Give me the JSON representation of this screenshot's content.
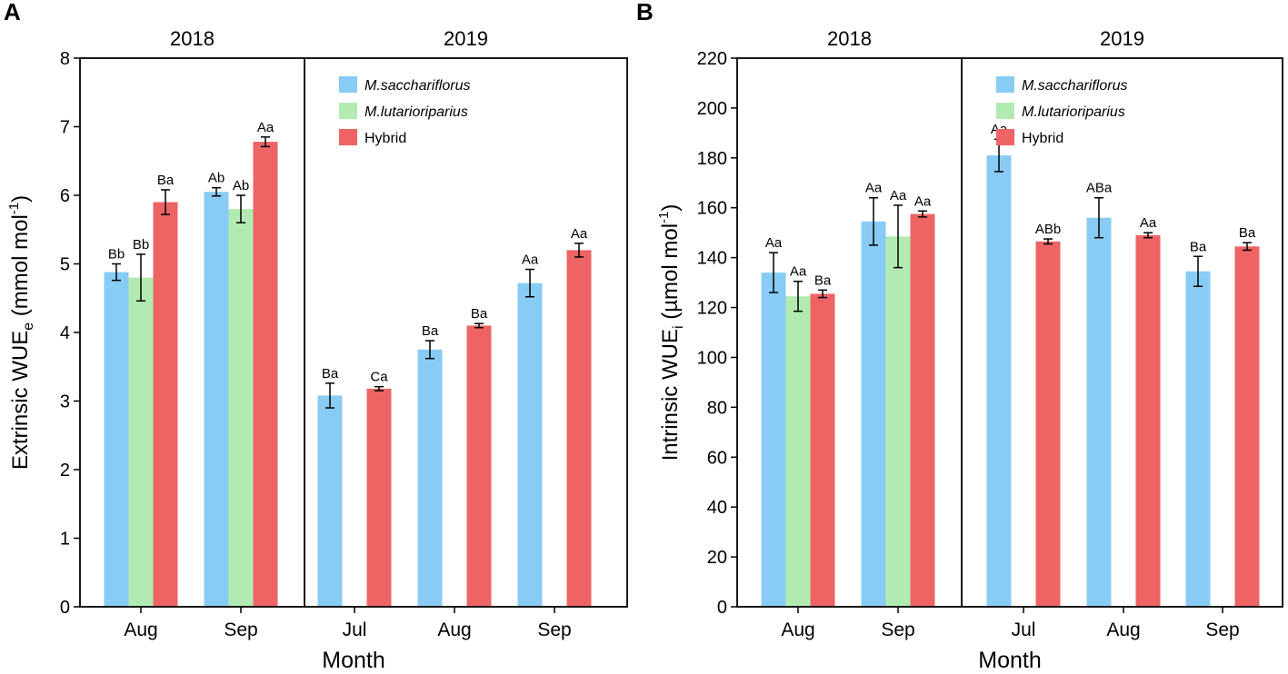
{
  "colors": {
    "M.sacchariflorus": "#88CCF5",
    "M.lutarioriparius": "#B2EBB2",
    "Hybrid": "#EE6464"
  },
  "chart_data": [
    {
      "type": "bar",
      "panel": "A",
      "title": "",
      "xlabel": "Month",
      "ylabel_main": "Extrinsic WUE",
      "ylabel_sub": "e",
      "ylabel_unit_open": " (mmol mol",
      "ylabel_unit_sup": "-1",
      "ylabel_unit_close": ")",
      "ylim": [
        0,
        8
      ],
      "yticks": [
        "0",
        "1",
        "2",
        "3",
        "4",
        "5",
        "6",
        "7",
        "8"
      ],
      "yticks_num": [
        0,
        1,
        2,
        3,
        4,
        5,
        6,
        7,
        8
      ],
      "legend_position": "top-right",
      "legend": [
        {
          "name": "M.sacchariflorus",
          "italic": true
        },
        {
          "name": "M.lutarioriparius",
          "italic": true
        },
        {
          "name": "Hybrid",
          "italic": false
        }
      ],
      "groups": [
        {
          "year": "2018",
          "categories": [
            {
              "label": "Aug",
              "bars": [
                {
                  "series": "M.sacchariflorus",
                  "value": 4.88,
                  "err": 0.12,
                  "label": "Bb"
                },
                {
                  "series": "M.lutarioriparius",
                  "value": 4.8,
                  "err": 0.34,
                  "label": "Bb"
                },
                {
                  "series": "Hybrid",
                  "value": 5.9,
                  "err": 0.18,
                  "label": "Ba"
                }
              ]
            },
            {
              "label": "Sep",
              "bars": [
                {
                  "series": "M.sacchariflorus",
                  "value": 6.05,
                  "err": 0.06,
                  "label": "Ab"
                },
                {
                  "series": "M.lutarioriparius",
                  "value": 5.8,
                  "err": 0.2,
                  "label": "Ab"
                },
                {
                  "series": "Hybrid",
                  "value": 6.78,
                  "err": 0.07,
                  "label": "Aa"
                }
              ]
            }
          ]
        },
        {
          "year": "2019",
          "categories": [
            {
              "label": "Jul",
              "bars": [
                {
                  "series": "M.sacchariflorus",
                  "value": 3.08,
                  "err": 0.18,
                  "label": "Ba"
                },
                {
                  "series": "M.lutarioriparius",
                  "value": null,
                  "err": null,
                  "label": ""
                },
                {
                  "series": "Hybrid",
                  "value": 3.18,
                  "err": 0.03,
                  "label": "Ca"
                }
              ]
            },
            {
              "label": "Aug",
              "bars": [
                {
                  "series": "M.sacchariflorus",
                  "value": 3.75,
                  "err": 0.13,
                  "label": "Ba"
                },
                {
                  "series": "M.lutarioriparius",
                  "value": null,
                  "err": null,
                  "label": ""
                },
                {
                  "series": "Hybrid",
                  "value": 4.1,
                  "err": 0.03,
                  "label": "Ba"
                }
              ]
            },
            {
              "label": "Sep",
              "bars": [
                {
                  "series": "M.sacchariflorus",
                  "value": 4.72,
                  "err": 0.2,
                  "label": "Aa"
                },
                {
                  "series": "M.lutarioriparius",
                  "value": null,
                  "err": null,
                  "label": ""
                },
                {
                  "series": "Hybrid",
                  "value": 5.2,
                  "err": 0.1,
                  "label": "Aa"
                }
              ]
            }
          ]
        }
      ]
    },
    {
      "type": "bar",
      "panel": "B",
      "title": "",
      "xlabel": "Month",
      "ylabel_main": "Intrinsic WUE",
      "ylabel_sub": "i",
      "ylabel_unit_open": " (µmol mol",
      "ylabel_unit_sup": "-1",
      "ylabel_unit_close": ")",
      "ylim": [
        0,
        220
      ],
      "yticks": [
        "0",
        "20",
        "40",
        "60",
        "80",
        "100",
        "120",
        "140",
        "160",
        "180",
        "200",
        "220"
      ],
      "yticks_num": [
        0,
        20,
        40,
        60,
        80,
        100,
        120,
        140,
        160,
        180,
        200,
        220
      ],
      "legend_position": "top-right",
      "legend": [
        {
          "name": "M.sacchariflorus",
          "italic": true
        },
        {
          "name": "M.lutarioriparius",
          "italic": true
        },
        {
          "name": "Hybrid",
          "italic": false
        }
      ],
      "groups": [
        {
          "year": "2018",
          "categories": [
            {
              "label": "Aug",
              "bars": [
                {
                  "series": "M.sacchariflorus",
                  "value": 134,
                  "err": 8,
                  "label": "Aa"
                },
                {
                  "series": "M.lutarioriparius",
                  "value": 124.5,
                  "err": 6,
                  "label": "Aa"
                },
                {
                  "series": "Hybrid",
                  "value": 125.5,
                  "err": 1.5,
                  "label": "Ba"
                }
              ]
            },
            {
              "label": "Sep",
              "bars": [
                {
                  "series": "M.sacchariflorus",
                  "value": 154.5,
                  "err": 9.5,
                  "label": "Aa"
                },
                {
                  "series": "M.lutarioriparius",
                  "value": 148.5,
                  "err": 12.5,
                  "label": "Aa"
                },
                {
                  "series": "Hybrid",
                  "value": 157.5,
                  "err": 1.2,
                  "label": "Aa"
                }
              ]
            }
          ]
        },
        {
          "year": "2019",
          "categories": [
            {
              "label": "Jul",
              "bars": [
                {
                  "series": "M.sacchariflorus",
                  "value": 181,
                  "err": 6.5,
                  "label": "Aa"
                },
                {
                  "series": "M.lutarioriparius",
                  "value": null,
                  "err": null,
                  "label": ""
                },
                {
                  "series": "Hybrid",
                  "value": 146.5,
                  "err": 1,
                  "label": "ABb"
                }
              ]
            },
            {
              "label": "Aug",
              "bars": [
                {
                  "series": "M.sacchariflorus",
                  "value": 156,
                  "err": 8,
                  "label": "ABa"
                },
                {
                  "series": "M.lutarioriparius",
                  "value": null,
                  "err": null,
                  "label": ""
                },
                {
                  "series": "Hybrid",
                  "value": 149,
                  "err": 1,
                  "label": "Aa"
                }
              ]
            },
            {
              "label": "Sep",
              "bars": [
                {
                  "series": "M.sacchariflorus",
                  "value": 134.5,
                  "err": 6,
                  "label": "Ba"
                },
                {
                  "series": "M.lutarioriparius",
                  "value": null,
                  "err": null,
                  "label": ""
                },
                {
                  "series": "Hybrid",
                  "value": 144.5,
                  "err": 1.5,
                  "label": "Ba"
                }
              ]
            }
          ]
        }
      ]
    }
  ]
}
